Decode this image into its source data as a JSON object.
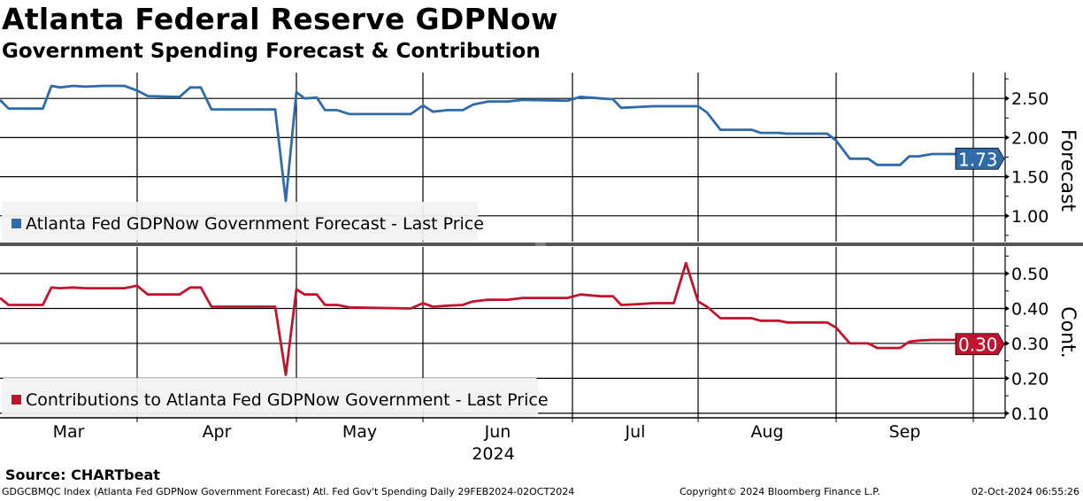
{
  "title": "Atlanta Federal Reserve GDPNow",
  "subtitle": "Government Spending Forecast & Contribution",
  "source": "Source: CHARTbeat",
  "footer": {
    "left": "GDGCBMQC Index (Atlanta Fed GDPNow Government Forecast) Atl. Fed Gov't Spending  Daily 29FEB2024-02OCT2024",
    "center": "Copyright© 2024 Bloomberg Finance L.P.",
    "right": "02-Oct-2024 06:55:26"
  },
  "colors": {
    "forecast": "#2e6ba8",
    "contribution": "#c0142e",
    "legend_bg": "#f2f2f2",
    "divider": "#555555"
  },
  "chart_data": {
    "type": "line",
    "x_month_labels": [
      "Mar",
      "Apr",
      "May",
      "Jun",
      "Jul",
      "Aug",
      "Sep"
    ],
    "x_year_label": "2024",
    "x_range": [
      "2024-02-29",
      "2024-10-02"
    ],
    "dates": [
      "2024-02-29",
      "2024-03-02",
      "2024-03-10",
      "2024-03-12",
      "2024-03-14",
      "2024-03-17",
      "2024-03-20",
      "2024-03-24",
      "2024-03-29",
      "2024-04-01",
      "2024-04-03",
      "2024-04-08",
      "2024-04-09",
      "2024-04-11",
      "2024-04-13",
      "2024-04-15",
      "2024-04-27",
      "2024-04-29",
      "2024-05-01",
      "2024-05-03",
      "2024-05-06",
      "2024-05-08",
      "2024-05-11",
      "2024-05-14",
      "2024-05-29",
      "2024-06-01",
      "2024-06-03",
      "2024-06-06",
      "2024-06-09",
      "2024-06-11",
      "2024-06-14",
      "2024-06-18",
      "2024-06-21",
      "2024-06-30",
      "2024-07-03",
      "2024-07-08",
      "2024-07-11",
      "2024-07-13",
      "2024-07-17",
      "2024-07-21",
      "2024-07-26",
      "2024-07-29",
      "2024-08-01",
      "2024-08-03",
      "2024-08-06",
      "2024-08-13",
      "2024-08-15",
      "2024-08-19",
      "2024-08-21",
      "2024-08-30",
      "2024-09-01",
      "2024-09-04",
      "2024-09-08",
      "2024-09-10",
      "2024-09-15",
      "2024-09-17",
      "2024-09-19",
      "2024-09-22",
      "2024-09-29",
      "2024-10-01",
      "2024-10-02"
    ],
    "panels": [
      {
        "name": "Atlanta Fed GDPNow Government Forecast - Last Price",
        "axis_label": "Forecast",
        "ylim": [
          0.67,
          2.83
        ],
        "yticks": [
          1.0,
          1.5,
          2.0,
          2.5
        ],
        "ytick_labels": [
          "1.00",
          "1.50",
          "2.00",
          "2.50"
        ],
        "minor_ticks": [
          0.75,
          1.25,
          1.75,
          2.25,
          2.75
        ],
        "last_value": "1.73",
        "values": [
          2.48,
          2.37,
          2.37,
          2.66,
          2.64,
          2.66,
          2.65,
          2.66,
          2.66,
          2.6,
          2.53,
          2.52,
          2.52,
          2.64,
          2.64,
          2.36,
          2.36,
          1.19,
          2.58,
          2.5,
          2.51,
          2.35,
          2.35,
          2.3,
          2.3,
          2.41,
          2.33,
          2.35,
          2.35,
          2.42,
          2.46,
          2.46,
          2.48,
          2.47,
          2.52,
          2.5,
          2.49,
          2.38,
          2.39,
          2.4,
          2.4,
          2.4,
          2.4,
          2.32,
          2.1,
          2.1,
          2.06,
          2.06,
          2.05,
          2.05,
          1.96,
          1.73,
          1.73,
          1.65,
          1.65,
          1.76,
          1.76,
          1.79,
          1.79,
          1.81,
          1.73
        ]
      },
      {
        "name": "Contributions to Atlanta Fed GDPNow Government - Last Price",
        "axis_label": "Cont.",
        "ylim": [
          0.087,
          0.576
        ],
        "yticks": [
          0.1,
          0.2,
          0.3,
          0.4,
          0.5
        ],
        "ytick_labels": [
          "0.10",
          "0.20",
          "0.30",
          "0.40",
          "0.50"
        ],
        "minor_ticks": [
          0.15,
          0.25,
          0.35,
          0.45,
          0.55
        ],
        "last_value": "0.30",
        "values": [
          0.43,
          0.41,
          0.41,
          0.46,
          0.458,
          0.46,
          0.458,
          0.458,
          0.458,
          0.465,
          0.44,
          0.44,
          0.44,
          0.46,
          0.46,
          0.405,
          0.405,
          0.21,
          0.455,
          0.44,
          0.44,
          0.41,
          0.41,
          0.403,
          0.4,
          0.415,
          0.405,
          0.408,
          0.41,
          0.42,
          0.425,
          0.425,
          0.43,
          0.43,
          0.44,
          0.435,
          0.435,
          0.41,
          0.412,
          0.415,
          0.415,
          0.53,
          0.42,
          0.405,
          0.372,
          0.372,
          0.365,
          0.365,
          0.36,
          0.36,
          0.345,
          0.3,
          0.3,
          0.287,
          0.287,
          0.305,
          0.308,
          0.31,
          0.31,
          0.3,
          0.298
        ]
      }
    ]
  }
}
